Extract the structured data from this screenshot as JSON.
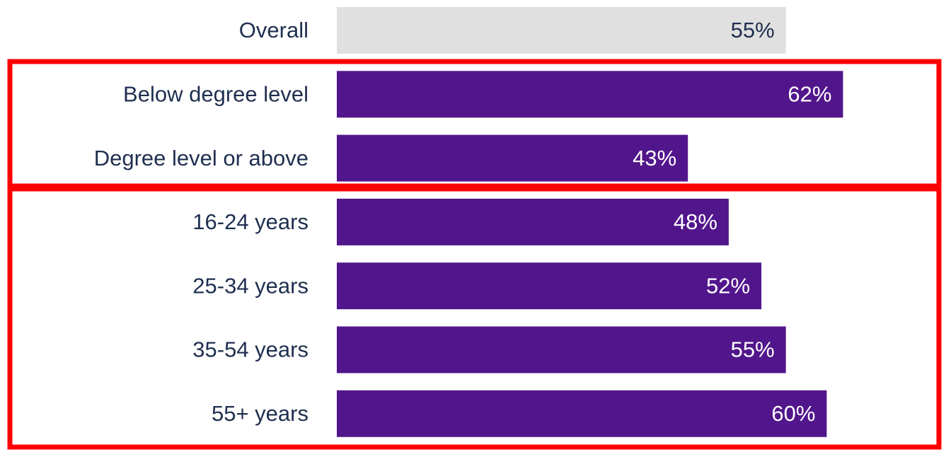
{
  "chart_data": {
    "type": "barh",
    "categories": [
      "Overall",
      "Below degree level",
      "Degree level or above",
      "16-24 years",
      "25-34 years",
      "35-54 years",
      "55+ years"
    ],
    "values": [
      55,
      62,
      43,
      48,
      52,
      55,
      60
    ],
    "value_labels": [
      "55%",
      "62%",
      "43%",
      "48%",
      "52%",
      "55%",
      "60%"
    ],
    "colors": [
      "#e0e0e0",
      "#52168c",
      "#52168c",
      "#52168c",
      "#52168c",
      "#52168c",
      "#52168c"
    ],
    "label_colors": [
      "#1f2f4f",
      "#ffffff",
      "#ffffff",
      "#ffffff",
      "#ffffff",
      "#ffffff",
      "#ffffff"
    ],
    "category_color": "#1f2f4f",
    "xlim": [
      0,
      100
    ]
  }
}
